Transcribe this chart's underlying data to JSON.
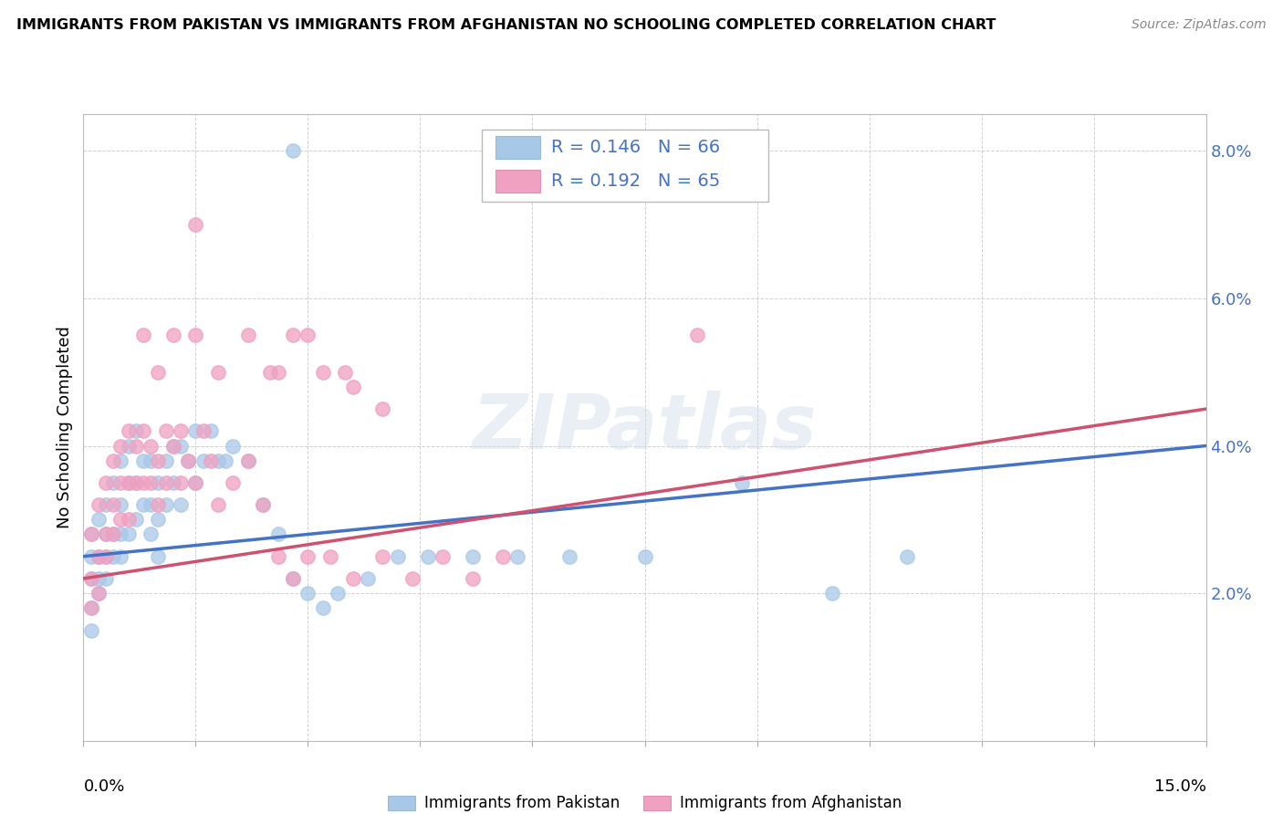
{
  "title": "IMMIGRANTS FROM PAKISTAN VS IMMIGRANTS FROM AFGHANISTAN NO SCHOOLING COMPLETED CORRELATION CHART",
  "source": "Source: ZipAtlas.com",
  "ylabel": "No Schooling Completed",
  "xmin": 0.0,
  "xmax": 0.15,
  "ymin": 0.0,
  "ymax": 0.085,
  "yticks": [
    0.02,
    0.04,
    0.06,
    0.08
  ],
  "ytick_labels": [
    "2.0%",
    "4.0%",
    "6.0%",
    "8.0%"
  ],
  "color_pakistan": "#a8c8e8",
  "color_afghanistan": "#f0a0c0",
  "line_color_pakistan": "#4472c4",
  "line_color_afghanistan": "#d05070",
  "R_pakistan": 0.146,
  "N_pakistan": 66,
  "R_afghanistan": 0.192,
  "N_afghanistan": 65,
  "watermark": "ZIPatlas",
  "background_color": "#ffffff",
  "pak_x": [
    0.001,
    0.001,
    0.001,
    0.001,
    0.001,
    0.002,
    0.002,
    0.002,
    0.002,
    0.003,
    0.003,
    0.003,
    0.003,
    0.004,
    0.004,
    0.004,
    0.005,
    0.005,
    0.005,
    0.005,
    0.006,
    0.006,
    0.006,
    0.007,
    0.007,
    0.007,
    0.008,
    0.008,
    0.009,
    0.009,
    0.009,
    0.01,
    0.01,
    0.01,
    0.011,
    0.011,
    0.012,
    0.012,
    0.013,
    0.013,
    0.014,
    0.015,
    0.015,
    0.016,
    0.017,
    0.018,
    0.019,
    0.02,
    0.022,
    0.024,
    0.026,
    0.028,
    0.03,
    0.032,
    0.034,
    0.038,
    0.042,
    0.046,
    0.052,
    0.058,
    0.065,
    0.075,
    0.088,
    0.1,
    0.11,
    0.028
  ],
  "pak_y": [
    0.025,
    0.022,
    0.018,
    0.028,
    0.015,
    0.03,
    0.025,
    0.022,
    0.02,
    0.032,
    0.028,
    0.025,
    0.022,
    0.035,
    0.028,
    0.025,
    0.038,
    0.032,
    0.028,
    0.025,
    0.04,
    0.035,
    0.028,
    0.042,
    0.035,
    0.03,
    0.038,
    0.032,
    0.038,
    0.032,
    0.028,
    0.035,
    0.03,
    0.025,
    0.038,
    0.032,
    0.04,
    0.035,
    0.04,
    0.032,
    0.038,
    0.042,
    0.035,
    0.038,
    0.042,
    0.038,
    0.038,
    0.04,
    0.038,
    0.032,
    0.028,
    0.022,
    0.02,
    0.018,
    0.02,
    0.022,
    0.025,
    0.025,
    0.025,
    0.025,
    0.025,
    0.025,
    0.035,
    0.02,
    0.025,
    0.08
  ],
  "afg_x": [
    0.001,
    0.001,
    0.001,
    0.002,
    0.002,
    0.002,
    0.003,
    0.003,
    0.003,
    0.004,
    0.004,
    0.004,
    0.005,
    0.005,
    0.005,
    0.006,
    0.006,
    0.006,
    0.007,
    0.007,
    0.008,
    0.008,
    0.009,
    0.009,
    0.01,
    0.01,
    0.011,
    0.011,
    0.012,
    0.013,
    0.013,
    0.014,
    0.015,
    0.016,
    0.017,
    0.018,
    0.02,
    0.022,
    0.024,
    0.026,
    0.028,
    0.03,
    0.033,
    0.036,
    0.04,
    0.044,
    0.048,
    0.052,
    0.056,
    0.035,
    0.025,
    0.028,
    0.032,
    0.036,
    0.04,
    0.015,
    0.018,
    0.022,
    0.026,
    0.03,
    0.008,
    0.01,
    0.012,
    0.015,
    0.082
  ],
  "afg_y": [
    0.028,
    0.022,
    0.018,
    0.032,
    0.025,
    0.02,
    0.035,
    0.028,
    0.025,
    0.038,
    0.032,
    0.028,
    0.04,
    0.035,
    0.03,
    0.042,
    0.035,
    0.03,
    0.04,
    0.035,
    0.042,
    0.035,
    0.04,
    0.035,
    0.038,
    0.032,
    0.042,
    0.035,
    0.04,
    0.042,
    0.035,
    0.038,
    0.035,
    0.042,
    0.038,
    0.032,
    0.035,
    0.038,
    0.032,
    0.025,
    0.022,
    0.025,
    0.025,
    0.022,
    0.025,
    0.022,
    0.025,
    0.022,
    0.025,
    0.05,
    0.05,
    0.055,
    0.05,
    0.048,
    0.045,
    0.055,
    0.05,
    0.055,
    0.05,
    0.055,
    0.055,
    0.05,
    0.055,
    0.07,
    0.055
  ],
  "pak_line_x0": 0.0,
  "pak_line_y0": 0.025,
  "pak_line_x1": 0.15,
  "pak_line_y1": 0.04,
  "afg_line_x0": 0.0,
  "afg_line_y0": 0.022,
  "afg_line_x1": 0.15,
  "afg_line_y1": 0.045
}
